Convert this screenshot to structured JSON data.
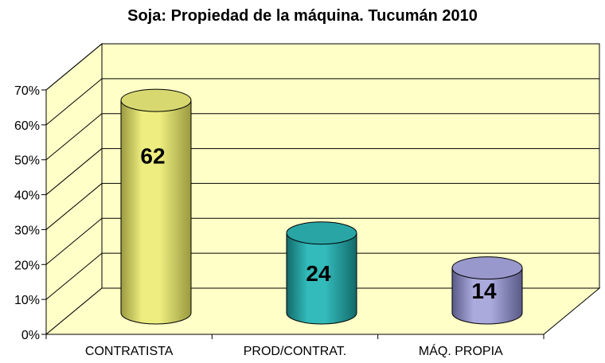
{
  "chart_data": {
    "type": "bar",
    "title": "Soja: Propiedad de la máquina. Tucumán 2010",
    "categories": [
      "CONTRATISTA",
      "PROD/CONTRAT.",
      "MÁQ. PROPIA"
    ],
    "values": [
      62,
      24,
      14
    ],
    "data_labels": [
      "62",
      "24",
      "14"
    ],
    "yticks": [
      "0%",
      "10%",
      "20%",
      "30%",
      "40%",
      "50%",
      "60%",
      "70%"
    ],
    "ylim": [
      0,
      70
    ],
    "grid": true,
    "legend": "none",
    "style": "3d-cylinder",
    "colors": {
      "wall": "#FFFFC8",
      "floor": "#FFFFC8",
      "bars": [
        "#EEEE80",
        "#33BBBB",
        "#AAAADD"
      ],
      "bar_shades": [
        "#9A9A40",
        "#136A6A",
        "#5A5A88"
      ],
      "bar_tops": [
        "#D8D870",
        "#2AA5A5",
        "#9898CC"
      ]
    }
  }
}
